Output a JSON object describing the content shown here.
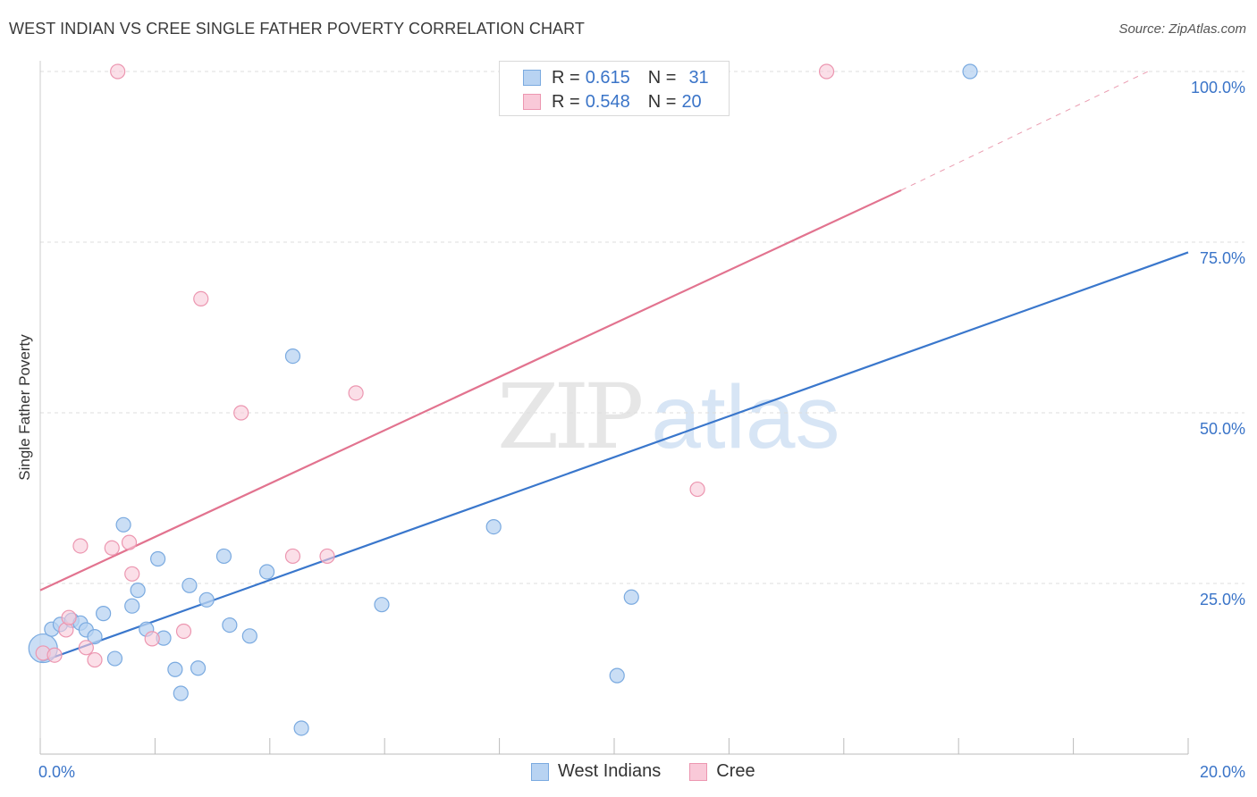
{
  "header": {
    "title": "WEST INDIAN VS CREE SINGLE FATHER POVERTY CORRELATION CHART",
    "source": "Source: ZipAtlas.com"
  },
  "watermark": {
    "zip": "ZIP",
    "atlas": "atlas"
  },
  "legend": {
    "rows": [
      {
        "r_label": "R =",
        "r_value": "0.615",
        "n_label": "N =",
        "n_value": "31"
      },
      {
        "r_label": "R =",
        "r_value": "0.548",
        "n_label": "N =",
        "n_value": "20"
      }
    ]
  },
  "bottom_legend": {
    "west_indians": "West Indians",
    "cree": "Cree"
  },
  "colors": {
    "west_fill": "#b8d3f2",
    "west_stroke": "#7aaae0",
    "west_line": "#3a77cc",
    "cree_fill": "#f9c9d8",
    "cree_stroke": "#ec96b0",
    "cree_line": "#e2738f",
    "tick_label": "#3a74c8",
    "grid": "#dddddd"
  },
  "chart_data": {
    "type": "scatter",
    "title": "WEST INDIAN VS CREE SINGLE FATHER POVERTY CORRELATION CHART",
    "xlabel": "",
    "ylabel": "Single Father Poverty",
    "xlim": [
      0,
      20
    ],
    "ylim": [
      0,
      100
    ],
    "x_tick_labels": [
      "0.0%",
      "20.0%"
    ],
    "y_ticks": [
      25,
      50,
      75,
      100
    ],
    "y_tick_labels": [
      "25.0%",
      "50.0%",
      "75.0%",
      "100.0%"
    ],
    "series": [
      {
        "name": "West Indians",
        "r": 0.615,
        "n": 31,
        "trend": {
          "x0": 0,
          "y0": 13.5,
          "x1": 20,
          "y1": 73.5
        },
        "points": [
          [
            0.05,
            15.5
          ],
          [
            0.2,
            18.3
          ],
          [
            0.35,
            19.0
          ],
          [
            0.55,
            19.6
          ],
          [
            0.7,
            19.2
          ],
          [
            0.8,
            18.2
          ],
          [
            0.95,
            17.2
          ],
          [
            1.1,
            20.6
          ],
          [
            1.3,
            14.0
          ],
          [
            1.45,
            33.6
          ],
          [
            1.6,
            21.7
          ],
          [
            1.7,
            24.0
          ],
          [
            1.85,
            18.3
          ],
          [
            2.05,
            28.6
          ],
          [
            2.15,
            17.0
          ],
          [
            2.35,
            12.4
          ],
          [
            2.45,
            8.9
          ],
          [
            2.6,
            24.7
          ],
          [
            2.75,
            12.6
          ],
          [
            2.9,
            22.6
          ],
          [
            3.2,
            29.0
          ],
          [
            3.3,
            18.9
          ],
          [
            3.65,
            17.3
          ],
          [
            3.95,
            26.7
          ],
          [
            4.4,
            58.3
          ],
          [
            4.55,
            3.8
          ],
          [
            5.95,
            21.9
          ],
          [
            7.9,
            33.3
          ],
          [
            10.05,
            11.5
          ],
          [
            10.3,
            23.0
          ],
          [
            16.2,
            100.0
          ]
        ]
      },
      {
        "name": "Cree",
        "r": 0.548,
        "n": 20,
        "trend": {
          "x0": 0,
          "y0": 24.0,
          "x1": 15,
          "y1": 82.6,
          "dashed_to": {
            "x": 19.3,
            "y": 100
          }
        },
        "points": [
          [
            0.05,
            14.8
          ],
          [
            0.25,
            14.5
          ],
          [
            0.45,
            18.2
          ],
          [
            0.5,
            20.0
          ],
          [
            0.7,
            30.5
          ],
          [
            0.8,
            15.6
          ],
          [
            0.95,
            13.8
          ],
          [
            1.25,
            30.2
          ],
          [
            1.35,
            100.0
          ],
          [
            1.55,
            31.0
          ],
          [
            1.6,
            26.4
          ],
          [
            1.95,
            16.9
          ],
          [
            2.5,
            18.0
          ],
          [
            2.8,
            66.7
          ],
          [
            3.5,
            50.0
          ],
          [
            4.4,
            29.0
          ],
          [
            5.0,
            29.0
          ],
          [
            5.5,
            52.9
          ],
          [
            11.45,
            38.8
          ],
          [
            13.7,
            100.0
          ]
        ]
      }
    ]
  }
}
